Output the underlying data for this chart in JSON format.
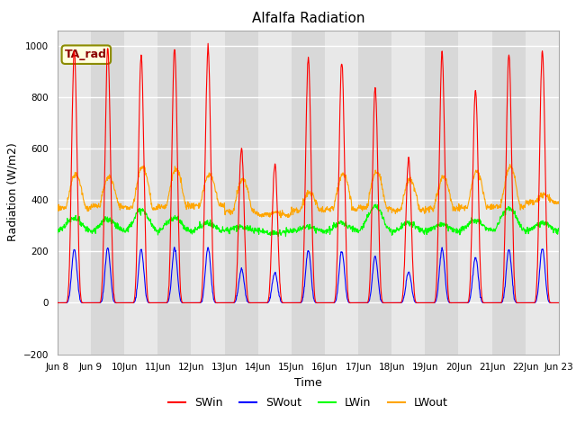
{
  "title": "Alfalfa Radiation",
  "ylabel": "Radiation (W/m2)",
  "xlabel": "Time",
  "ylim": [
    -200,
    1060
  ],
  "yticks": [
    -200,
    0,
    200,
    400,
    600,
    800,
    1000
  ],
  "n_days": 15,
  "legend_labels": [
    "SWin",
    "SWout",
    "LWin",
    "LWout"
  ],
  "legend_colors": [
    "red",
    "blue",
    "green",
    "orange"
  ],
  "annotation_text": "TA_rad",
  "plot_bg_color": "#d8d8d8",
  "grid_color": "#c0c0c0",
  "stripe_color1": "#d8d8d8",
  "stripe_color2": "#e8e8e8",
  "SW_peaks": [
    975,
    990,
    960,
    990,
    990,
    600,
    540,
    950,
    940,
    830,
    560,
    970,
    830,
    970,
    980
  ],
  "LWout_peaks": [
    500,
    490,
    530,
    520,
    500,
    480,
    350,
    430,
    500,
    510,
    480,
    490,
    510,
    530,
    420
  ],
  "LWout_nights": [
    370,
    375,
    370,
    375,
    380,
    355,
    340,
    360,
    365,
    370,
    360,
    365,
    370,
    375,
    390
  ],
  "LWin_peaks": [
    330,
    325,
    360,
    330,
    310,
    295,
    270,
    295,
    310,
    375,
    310,
    305,
    320,
    370,
    310
  ],
  "LWin_base": 280,
  "SWout_ratio": 0.215,
  "pts_per_day": 96
}
